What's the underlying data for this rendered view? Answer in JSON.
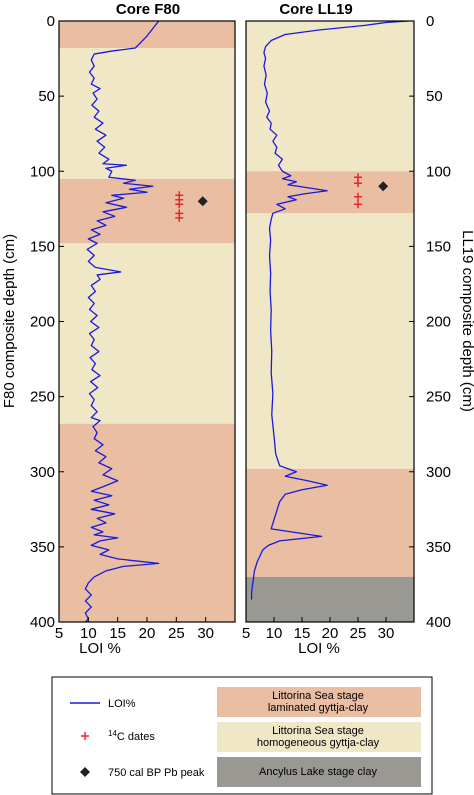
{
  "chart_data": [
    {
      "type": "line",
      "title": "Core F80",
      "xlabel": "LOI %",
      "ylabel": "F80 composite depth (cm)",
      "xlim": [
        5,
        35
      ],
      "ylim": [
        400,
        0
      ],
      "x_ticks": [
        5,
        10,
        15,
        20,
        25,
        30
      ],
      "y_ticks": [
        0,
        50,
        100,
        150,
        200,
        250,
        300,
        350,
        400
      ],
      "y_tick_side": "left",
      "zones": [
        {
          "type": "laminated",
          "from": 0,
          "to": 18
        },
        {
          "type": "homogeneous",
          "from": 18,
          "to": 105
        },
        {
          "type": "laminated",
          "from": 105,
          "to": 148
        },
        {
          "type": "homogeneous",
          "from": 148,
          "to": 268
        },
        {
          "type": "laminated",
          "from": 268,
          "to": 400
        }
      ],
      "series": [
        {
          "name": "LOI%",
          "color": "#1a1adb",
          "points": [
            [
              22,
              0
            ],
            [
              21,
              5
            ],
            [
              20,
              10
            ],
            [
              19,
              14
            ],
            [
              18,
              18
            ],
            [
              14,
              20
            ],
            [
              11,
              22
            ],
            [
              10.5,
              26
            ],
            [
              11,
              30
            ],
            [
              10.2,
              34
            ],
            [
              11,
              38
            ],
            [
              10.5,
              42
            ],
            [
              12,
              45
            ],
            [
              10.8,
              48
            ],
            [
              11.5,
              52
            ],
            [
              10.6,
              56
            ],
            [
              11.8,
              60
            ],
            [
              11,
              64
            ],
            [
              12.5,
              68
            ],
            [
              11.2,
              72
            ],
            [
              13,
              76
            ],
            [
              11.5,
              80
            ],
            [
              12.8,
              84
            ],
            [
              11.8,
              88
            ],
            [
              13.5,
              92
            ],
            [
              12.5,
              95
            ],
            [
              16.5,
              96
            ],
            [
              13,
              98
            ],
            [
              14,
              100
            ],
            [
              13.5,
              104
            ],
            [
              18,
              106
            ],
            [
              16,
              108
            ],
            [
              21,
              110
            ],
            [
              17,
              112
            ],
            [
              20,
              114
            ],
            [
              14,
              116
            ],
            [
              16,
              118
            ],
            [
              13,
              121
            ],
            [
              16.5,
              124
            ],
            [
              12.5,
              127
            ],
            [
              14.5,
              130
            ],
            [
              11.5,
              133
            ],
            [
              13,
              136
            ],
            [
              10.5,
              139
            ],
            [
              12,
              142
            ],
            [
              10,
              145
            ],
            [
              11.5,
              148
            ],
            [
              9.8,
              152
            ],
            [
              11,
              156
            ],
            [
              10,
              160
            ],
            [
              11.2,
              164
            ],
            [
              15.5,
              167
            ],
            [
              11.5,
              169
            ],
            [
              12,
              172
            ],
            [
              10.5,
              176
            ],
            [
              11.2,
              180
            ],
            [
              10,
              184
            ],
            [
              11,
              188
            ],
            [
              10.2,
              192
            ],
            [
              11.5,
              196
            ],
            [
              10.4,
              200
            ],
            [
              11.8,
              204
            ],
            [
              10.2,
              208
            ],
            [
              11,
              212
            ],
            [
              10.5,
              216
            ],
            [
              11.8,
              220
            ],
            [
              10.3,
              224
            ],
            [
              11.2,
              228
            ],
            [
              10.6,
              232
            ],
            [
              12,
              236
            ],
            [
              10.4,
              240
            ],
            [
              11.6,
              244
            ],
            [
              10.2,
              248
            ],
            [
              11,
              252
            ],
            [
              10.5,
              256
            ],
            [
              11.5,
              260
            ],
            [
              10.5,
              264
            ],
            [
              12,
              266
            ],
            [
              10.8,
              270
            ],
            [
              11.5,
              274
            ],
            [
              11,
              278
            ],
            [
              12.5,
              282
            ],
            [
              11.2,
              286
            ],
            [
              13,
              290
            ],
            [
              11.8,
              294
            ],
            [
              14,
              298
            ],
            [
              12.5,
              302
            ],
            [
              15,
              306
            ],
            [
              12.5,
              310
            ],
            [
              10.5,
              313
            ],
            [
              14,
              316
            ],
            [
              11,
              319
            ],
            [
              13.5,
              322
            ],
            [
              10.5,
              325
            ],
            [
              14.5,
              328
            ],
            [
              11.5,
              331
            ],
            [
              13,
              334
            ],
            [
              10.5,
              337
            ],
            [
              12.5,
              340
            ],
            [
              11,
              342
            ],
            [
              15,
              344
            ],
            [
              12,
              346
            ],
            [
              10.5,
              349
            ],
            [
              13.5,
              352
            ],
            [
              12,
              355
            ],
            [
              15,
              358
            ],
            [
              22,
              361
            ],
            [
              16,
              363
            ],
            [
              13,
              366
            ],
            [
              11,
              370
            ],
            [
              10,
              374
            ],
            [
              9.5,
              378
            ],
            [
              10.5,
              382
            ],
            [
              9.5,
              386
            ],
            [
              10.5,
              390
            ],
            [
              9.5,
              394
            ],
            [
              10,
              398
            ],
            [
              9.5,
              400
            ]
          ]
        }
      ],
      "c14_dates": [
        {
          "loi": 25.5,
          "depth": 116
        },
        {
          "loi": 25.5,
          "depth": 119
        },
        {
          "loi": 25.5,
          "depth": 122
        },
        {
          "loi": 25.5,
          "depth": 128
        },
        {
          "loi": 25.5,
          "depth": 131
        }
      ],
      "pb_peak": [
        {
          "loi": 29.5,
          "depth": 120
        }
      ]
    },
    {
      "type": "line",
      "title": "Core LL19",
      "xlabel": "LOI %",
      "ylabel": "LL19 composite depth (cm)",
      "xlim": [
        5,
        35
      ],
      "ylim": [
        400,
        0
      ],
      "x_ticks": [
        5,
        10,
        15,
        20,
        25,
        30
      ],
      "y_ticks": [
        0,
        50,
        100,
        150,
        200,
        250,
        300,
        350,
        400
      ],
      "y_tick_side": "right",
      "zones": [
        {
          "type": "homogeneous",
          "from": 0,
          "to": 100
        },
        {
          "type": "laminated",
          "from": 100,
          "to": 128
        },
        {
          "type": "homogeneous",
          "from": 128,
          "to": 298
        },
        {
          "type": "laminated",
          "from": 298,
          "to": 370
        },
        {
          "type": "ancylus",
          "from": 370,
          "to": 400
        }
      ],
      "series": [
        {
          "name": "LOI%",
          "color": "#1a1adb",
          "points": [
            [
              34,
              0
            ],
            [
              30,
              1
            ],
            [
              26,
              3
            ],
            [
              18,
              6
            ],
            [
              12,
              9
            ],
            [
              9.5,
              13
            ],
            [
              8.5,
              17
            ],
            [
              8.2,
              21
            ],
            [
              8.5,
              25
            ],
            [
              8.2,
              30
            ],
            [
              8.6,
              36
            ],
            [
              8.3,
              42
            ],
            [
              8.8,
              48
            ],
            [
              8.5,
              54
            ],
            [
              9.2,
              60
            ],
            [
              8.7,
              64
            ],
            [
              9.5,
              68
            ],
            [
              9.3,
              72
            ],
            [
              10.5,
              76
            ],
            [
              9.8,
              80
            ],
            [
              10.5,
              84
            ],
            [
              10.2,
              88
            ],
            [
              11.5,
              92
            ],
            [
              10.8,
              96
            ],
            [
              11.5,
              100
            ],
            [
              13,
              103
            ],
            [
              11.5,
              105
            ],
            [
              14,
              107
            ],
            [
              12.5,
              109
            ],
            [
              16,
              111
            ],
            [
              19.5,
              113
            ],
            [
              15.5,
              115
            ],
            [
              12.5,
              117
            ],
            [
              14,
              119
            ],
            [
              10.5,
              122
            ],
            [
              12,
              125
            ],
            [
              9.8,
              128
            ],
            [
              9.5,
              132
            ],
            [
              9.2,
              138
            ],
            [
              9.4,
              146
            ],
            [
              9.2,
              156
            ],
            [
              9.4,
              168
            ],
            [
              9.3,
              180
            ],
            [
              9.5,
              192
            ],
            [
              9.4,
              206
            ],
            [
              9.6,
              220
            ],
            [
              9.5,
              234
            ],
            [
              9.8,
              248
            ],
            [
              9.6,
              262
            ],
            [
              10,
              276
            ],
            [
              10.3,
              288
            ],
            [
              11,
              296
            ],
            [
              14,
              300
            ],
            [
              12,
              303
            ],
            [
              16,
              306
            ],
            [
              19.5,
              309
            ],
            [
              15,
              312
            ],
            [
              12,
              315
            ],
            [
              11,
              320
            ],
            [
              10.5,
              326
            ],
            [
              10,
              332
            ],
            [
              9.5,
              338
            ],
            [
              18.5,
              343
            ],
            [
              11,
              346
            ],
            [
              9,
              349
            ],
            [
              8,
              352
            ],
            [
              7.5,
              356
            ],
            [
              7,
              360
            ],
            [
              6.5,
              366
            ],
            [
              6.3,
              372
            ],
            [
              6,
              380
            ],
            [
              6,
              385
            ]
          ]
        }
      ],
      "c14_dates": [
        {
          "loi": 25,
          "depth": 104
        },
        {
          "loi": 25,
          "depth": 108
        },
        {
          "loi": 25,
          "depth": 117
        },
        {
          "loi": 25,
          "depth": 122
        }
      ],
      "pb_peak": [
        {
          "loi": 29.5,
          "depth": 110
        }
      ]
    }
  ],
  "colors": {
    "laminated": "#e9bea2",
    "homogeneous": "#f0e7c7",
    "ancylus": "#9a9892",
    "loi_line": "#1a1adb",
    "c14_marker": "#e8262a",
    "pb_marker": "#222222"
  },
  "legend": [
    {
      "key": "loi",
      "symbol": "line",
      "label": "LOI%"
    },
    {
      "key": "laminated",
      "symbol": "zone",
      "label_line1": "Littorina Sea stage",
      "label_line2": "laminated gyttja-clay"
    },
    {
      "key": "c14",
      "symbol": "plus",
      "label_sup": "14",
      "label_rest": "C dates"
    },
    {
      "key": "homogeneous",
      "symbol": "zone",
      "label_line1": "Littorina Sea stage",
      "label_line2": "homogeneous gyttja-clay"
    },
    {
      "key": "pb",
      "symbol": "diamond",
      "label": "750 cal BP Pb peak"
    },
    {
      "key": "ancylus",
      "symbol": "zone",
      "label_line1": "Ancylus Lake stage clay",
      "label_line2": ""
    }
  ]
}
